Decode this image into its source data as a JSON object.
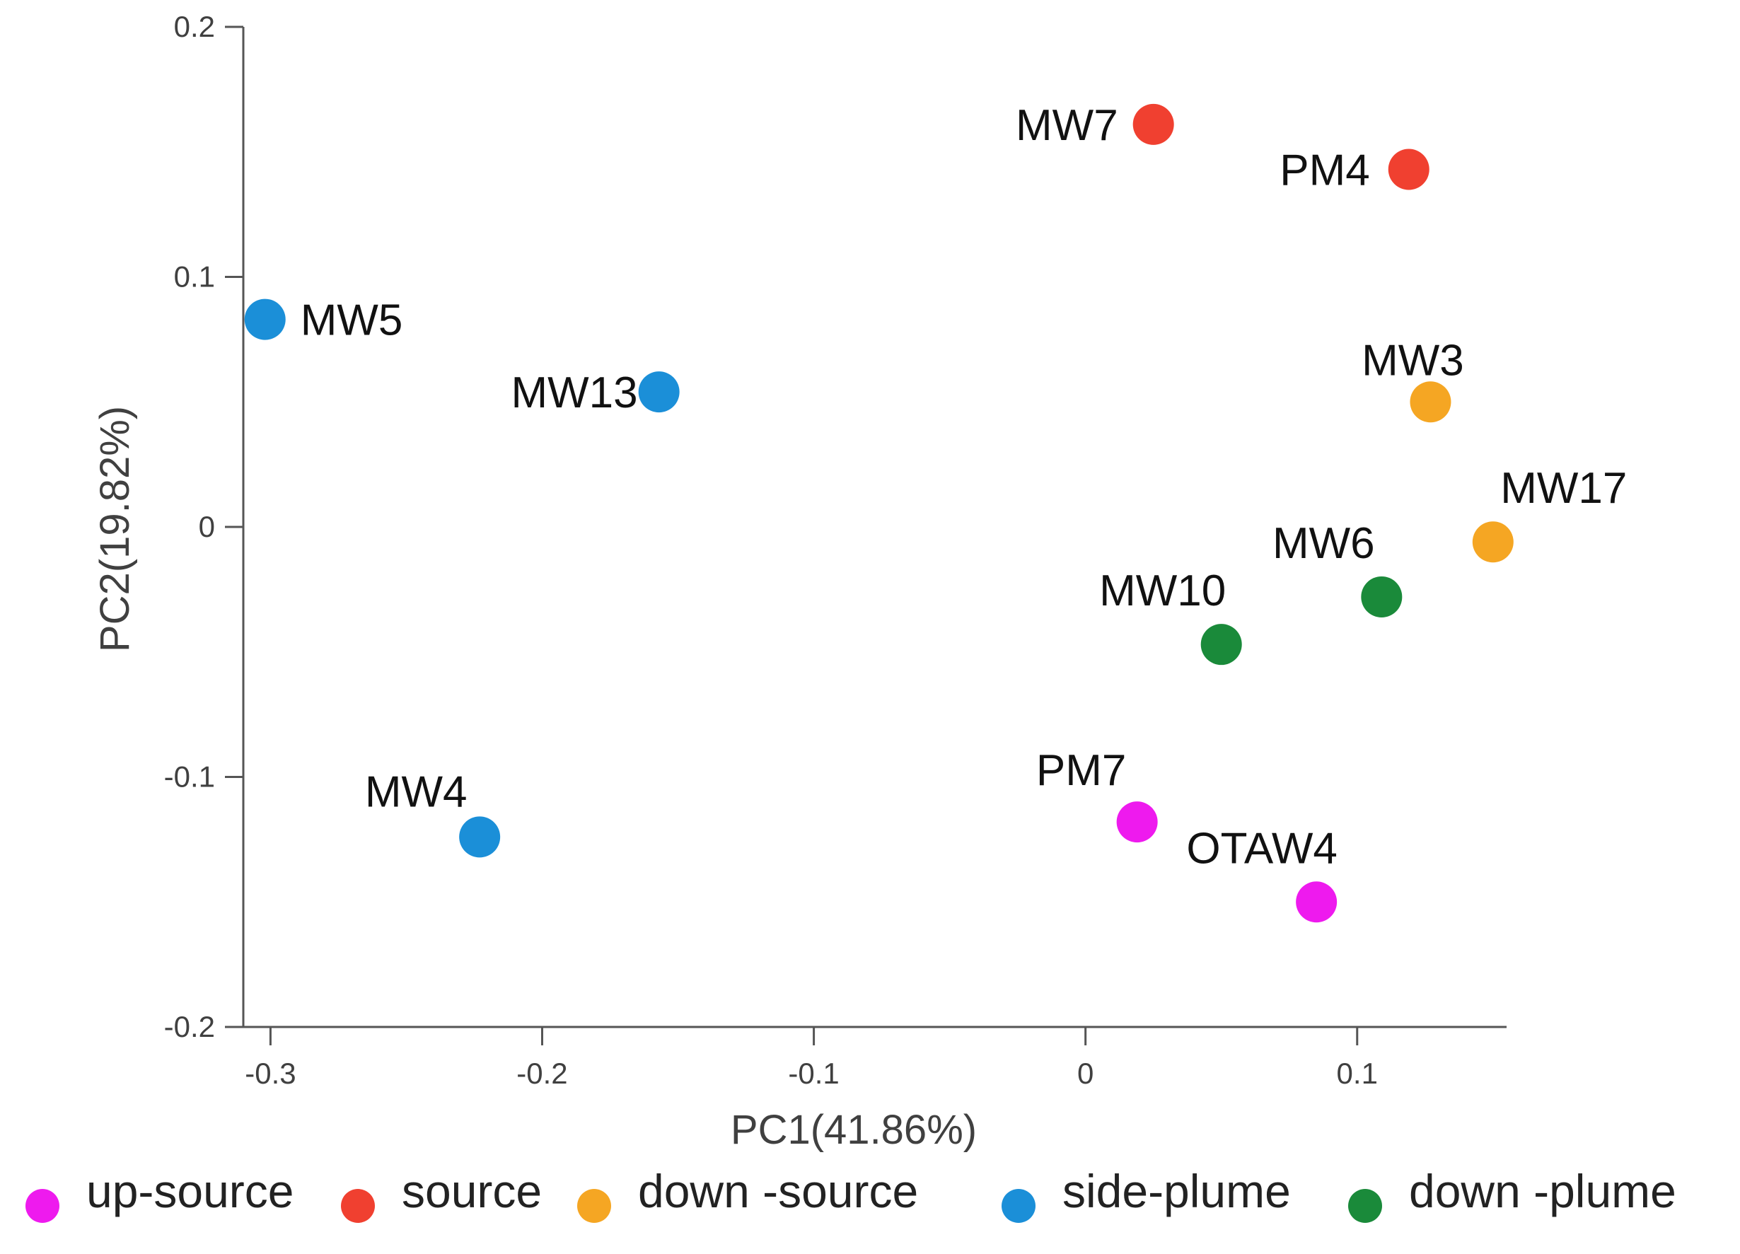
{
  "chart_data": {
    "type": "scatter",
    "title": "",
    "xlabel": "PC1(41.86%)",
    "ylabel": "PC2(19.82%)",
    "xlim": [
      -0.31,
      0.155
    ],
    "ylim": [
      -0.2,
      0.2
    ],
    "xticks": [
      -0.3,
      -0.2,
      -0.1,
      0,
      0.1
    ],
    "xtick_labels": [
      "-0.3",
      "-0.2",
      "-0.1",
      "0",
      "0.1"
    ],
    "yticks": [
      -0.2,
      -0.1,
      0,
      0.1,
      0.2
    ],
    "ytick_labels": [
      "-0.2",
      "-0.1",
      "0",
      "0.1",
      "0.2"
    ],
    "grid": false,
    "legend_position": "bottom",
    "series": [
      {
        "name": "up-source",
        "color": "#ee1aee",
        "points": [
          {
            "label": "PM7",
            "x": 0.019,
            "y": -0.118
          },
          {
            "label": "OTAW4",
            "x": 0.085,
            "y": -0.15
          }
        ]
      },
      {
        "name": "source",
        "color": "#f04030",
        "points": [
          {
            "label": "MW7",
            "x": 0.025,
            "y": 0.161
          },
          {
            "label": "PM4",
            "x": 0.119,
            "y": 0.143
          }
        ]
      },
      {
        "name": "down -source",
        "color": "#f5a623",
        "points": [
          {
            "label": "MW3",
            "x": 0.127,
            "y": 0.05
          },
          {
            "label": "MW17",
            "x": 0.15,
            "y": -0.006
          }
        ]
      },
      {
        "name": "side-plume",
        "color": "#1b8fd8",
        "points": [
          {
            "label": "MW5",
            "x": -0.302,
            "y": 0.083
          },
          {
            "label": "MW13",
            "x": -0.157,
            "y": 0.054
          },
          {
            "label": "MW4",
            "x": -0.223,
            "y": -0.124
          }
        ]
      },
      {
        "name": "down -plume",
        "color": "#1a8a3a",
        "points": [
          {
            "label": "MW10",
            "x": 0.05,
            "y": -0.047
          },
          {
            "label": "MW6",
            "x": 0.109,
            "y": -0.028
          }
        ]
      }
    ]
  }
}
